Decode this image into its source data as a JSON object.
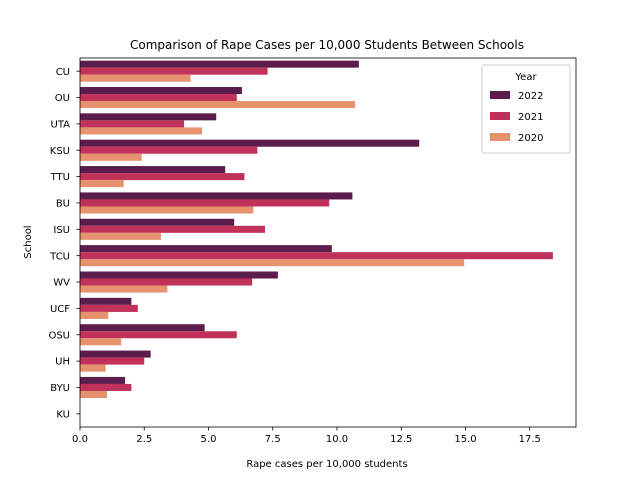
{
  "chart_data": {
    "type": "bar",
    "orientation": "horizontal",
    "title": "Comparison of Rape Cases per 10,000 Students Between Schools",
    "xlabel": "Rape cases per 10,000 students",
    "ylabel": "School",
    "xlim": [
      0,
      19.3
    ],
    "x_ticks": [
      0.0,
      2.5,
      5.0,
      7.5,
      10.0,
      12.5,
      15.0,
      17.5
    ],
    "x_tick_labels": [
      "0.0",
      "2.5",
      "5.0",
      "7.5",
      "10.0",
      "12.5",
      "15.0",
      "17.5"
    ],
    "grid": false,
    "legend": {
      "title": "Year",
      "position": "top-right"
    },
    "categories": [
      "CU",
      "OU",
      "UTA",
      "KSU",
      "TTU",
      "BU",
      "ISU",
      "TCU",
      "WV",
      "UCF",
      "OSU",
      "UH",
      "BYU",
      "KU"
    ],
    "series": [
      {
        "name": "2022",
        "color": "#5b1e4c",
        "values": [
          10.85,
          6.3,
          5.3,
          13.2,
          5.65,
          10.6,
          6.0,
          9.8,
          7.7,
          2.0,
          4.85,
          2.75,
          1.75,
          0
        ]
      },
      {
        "name": "2021",
        "color": "#c0325a",
        "values": [
          7.3,
          6.1,
          4.05,
          6.9,
          6.4,
          9.7,
          7.2,
          18.4,
          6.7,
          2.25,
          6.1,
          2.5,
          2.0,
          0
        ]
      },
      {
        "name": "2020",
        "color": "#e6926e",
        "values": [
          4.3,
          10.7,
          4.75,
          2.4,
          1.7,
          6.75,
          3.15,
          14.95,
          3.4,
          1.1,
          1.6,
          1.0,
          1.05,
          0
        ]
      }
    ]
  }
}
